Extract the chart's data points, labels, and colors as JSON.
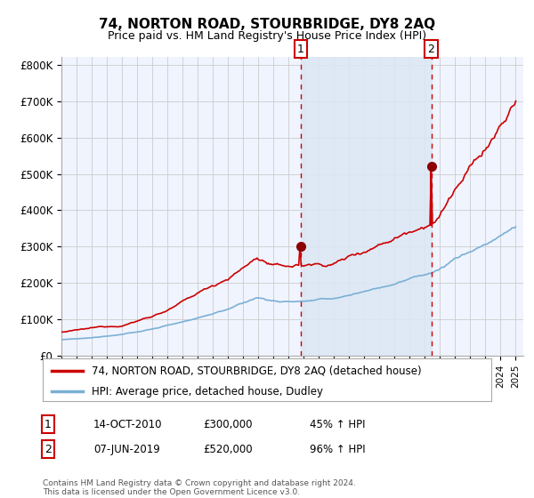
{
  "title": "74, NORTON ROAD, STOURBRIDGE, DY8 2AQ",
  "subtitle": "Price paid vs. HM Land Registry's House Price Index (HPI)",
  "bg_color": "#ffffff",
  "plot_bg_color": "#f0f4ff",
  "grid_color": "#cccccc",
  "red_line_color": "#cc0000",
  "blue_line_color": "#7ab0d4",
  "shaded_region_color": "#dce8f5",
  "vline_color": "#cc0000",
  "annotation1": {
    "label": "1",
    "date": "14-OCT-2010",
    "price": "£300,000",
    "pct": "45% ↑ HPI"
  },
  "annotation2": {
    "label": "2",
    "date": "07-JUN-2019",
    "price": "£520,000",
    "pct": "96% ↑ HPI"
  },
  "legend1": "74, NORTON ROAD, STOURBRIDGE, DY8 2AQ (detached house)",
  "legend2": "HPI: Average price, detached house, Dudley",
  "footer": "Contains HM Land Registry data © Crown copyright and database right 2024.\nThis data is licensed under the Open Government Licence v3.0.",
  "ylim": [
    0,
    820000
  ],
  "yticks": [
    0,
    100000,
    200000,
    300000,
    400000,
    500000,
    600000,
    700000,
    800000
  ],
  "ytick_labels": [
    "£0",
    "£100K",
    "£200K",
    "£300K",
    "£400K",
    "£500K",
    "£600K",
    "£700K",
    "£800K"
  ],
  "sale1_year": 2010.79,
  "sale1_value": 300000,
  "sale2_year": 2019.42,
  "sale2_value": 520000
}
